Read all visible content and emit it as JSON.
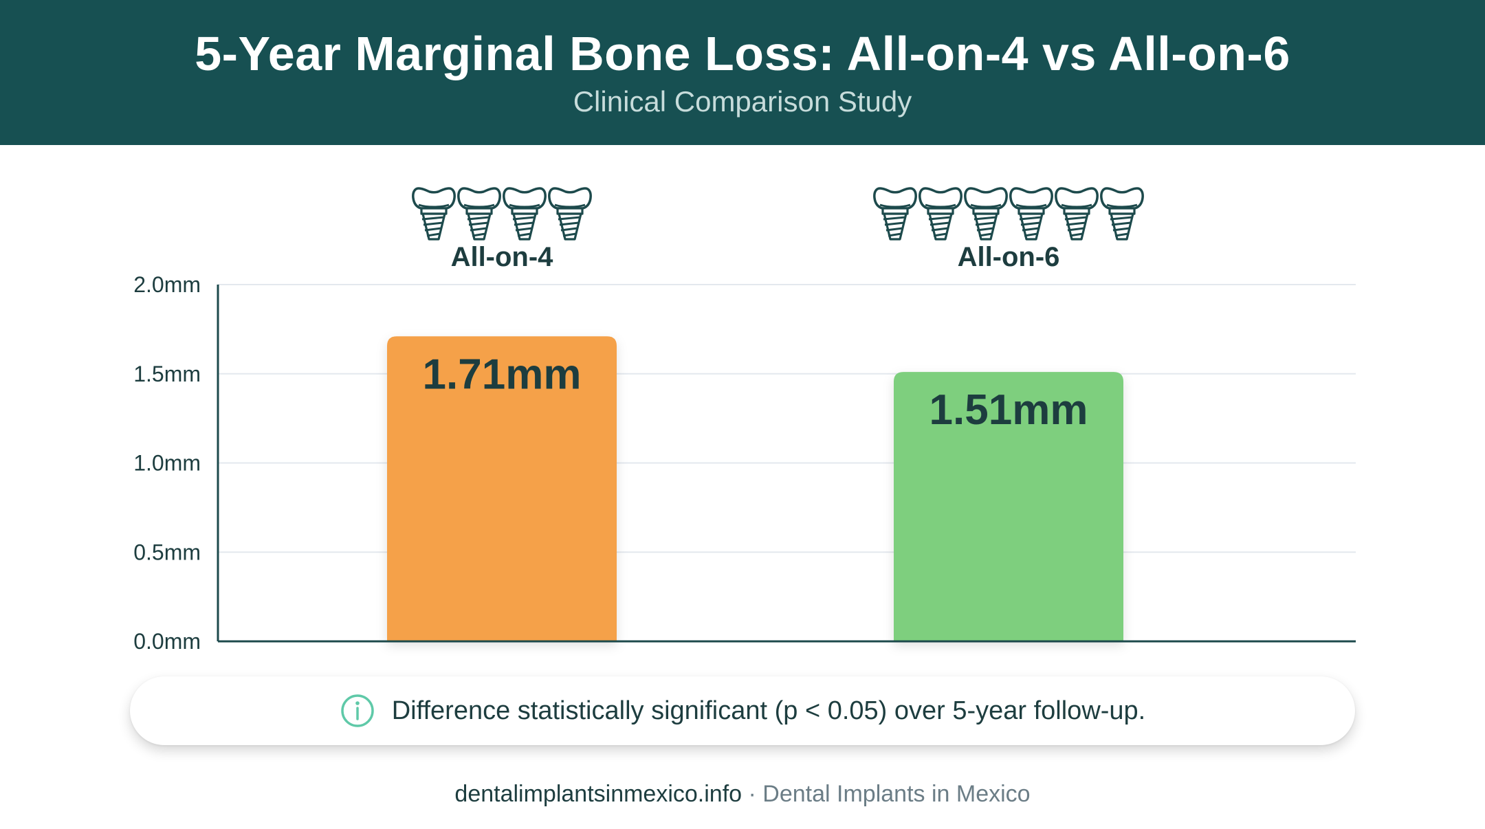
{
  "header": {
    "title": "5-Year Marginal Bone Loss: All-on-4 vs All-on-6",
    "subtitle": "Clinical Comparison Study"
  },
  "chart_data": {
    "type": "bar",
    "categories": [
      "All-on-4",
      "All-on-6"
    ],
    "values": [
      1.71,
      1.51
    ],
    "value_labels": [
      "1.71mm",
      "1.51mm"
    ],
    "implant_counts": [
      4,
      6
    ],
    "ylim": [
      0,
      2.0
    ],
    "yticks": [
      0,
      0.5,
      1.0,
      1.5,
      2.0
    ],
    "ytick_labels": [
      "0.0mm",
      "0.5mm",
      "1.0mm",
      "1.5mm",
      "2.0mm"
    ],
    "grid": true,
    "legend": "none",
    "colors": [
      "#F5A14A",
      "#7ECF7E"
    ],
    "icon": "dental-implant-icon"
  },
  "note": {
    "icon": "info-icon",
    "text": "Difference statistically significant (p < 0.05) over 5-year follow-up."
  },
  "footer": {
    "site": "dentalimplantsinmexico.info",
    "separator": " · ",
    "name": "Dental Implants in Mexico"
  },
  "colors": {
    "header_bg": "#175052",
    "text_dark": "#1D3D3F",
    "axis": "#1D4A4C",
    "grid": "#E3E8EE",
    "info": "#5FC9A8"
  }
}
